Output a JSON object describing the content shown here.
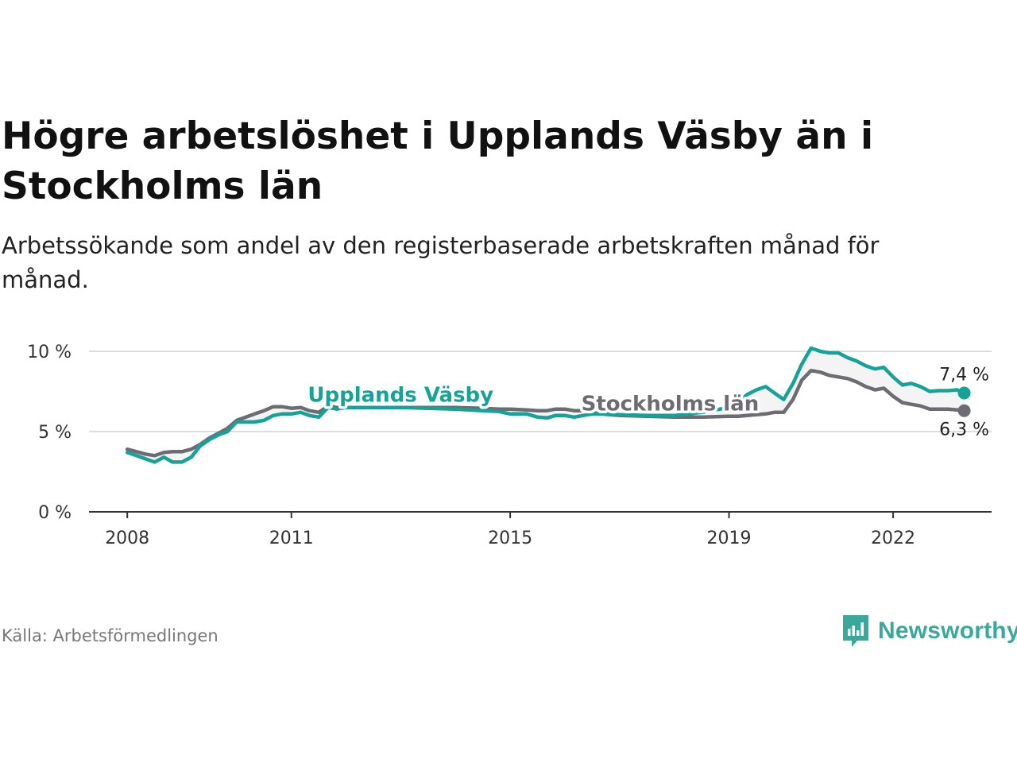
{
  "title": "Högre arbetslöshet i Upplands Väsby än i Stockholms län",
  "subtitle": "Arbetssökande som andel av den registerbaserade arbetskraften månad för månad.",
  "source": "Källa: Arbetsförmedlingen",
  "brand": {
    "name": "Newsworthy",
    "icon": "newsworthy-logo-icon"
  },
  "colors": {
    "upplands": "#14a396",
    "stockholm": "#6e6c73",
    "grid": "#dddddd",
    "axis": "#333333",
    "band": "#f4f4f4"
  },
  "chart_data": {
    "type": "line",
    "title": "Högre arbetslöshet i Upplands Väsby än i Stockholms län",
    "xlabel": "",
    "ylabel": "",
    "xlim": [
      2007.3,
      2023.8
    ],
    "ylim": [
      0,
      10
    ],
    "yticks": [
      0,
      5,
      10
    ],
    "ytick_labels": [
      "0 %",
      "5 %",
      "10 %"
    ],
    "xticks": [
      2008,
      2011,
      2015,
      2019,
      2022
    ],
    "xtick_labels": [
      "2008",
      "2011",
      "2015",
      "2019",
      "2022"
    ],
    "grid": true,
    "series": [
      {
        "name": "Upplands Väsby",
        "label_x": 2011.3,
        "label_y": 6.85,
        "end_label": "7,4 %",
        "points": [
          [
            2008.0,
            3.7
          ],
          [
            2008.17,
            3.5
          ],
          [
            2008.33,
            3.3
          ],
          [
            2008.5,
            3.1
          ],
          [
            2008.67,
            3.4
          ],
          [
            2008.83,
            3.1
          ],
          [
            2009.0,
            3.1
          ],
          [
            2009.17,
            3.4
          ],
          [
            2009.33,
            4.1
          ],
          [
            2009.5,
            4.5
          ],
          [
            2009.67,
            4.8
          ],
          [
            2009.83,
            5.0
          ],
          [
            2010.0,
            5.6
          ],
          [
            2010.17,
            5.6
          ],
          [
            2010.33,
            5.6
          ],
          [
            2010.5,
            5.7
          ],
          [
            2010.67,
            6.0
          ],
          [
            2010.83,
            6.1
          ],
          [
            2011.0,
            6.1
          ],
          [
            2011.17,
            6.2
          ],
          [
            2011.33,
            6.0
          ],
          [
            2011.5,
            5.9
          ],
          [
            2011.67,
            6.5
          ],
          [
            2011.83,
            6.4
          ],
          [
            2012.0,
            6.5
          ],
          [
            2012.5,
            6.5
          ],
          [
            2013.0,
            6.5
          ],
          [
            2013.5,
            6.45
          ],
          [
            2014.0,
            6.4
          ],
          [
            2014.5,
            6.3
          ],
          [
            2014.8,
            6.25
          ],
          [
            2015.0,
            6.1
          ],
          [
            2015.3,
            6.1
          ],
          [
            2015.5,
            5.9
          ],
          [
            2015.67,
            5.85
          ],
          [
            2015.83,
            6.0
          ],
          [
            2016.0,
            6.0
          ],
          [
            2016.17,
            5.9
          ],
          [
            2016.33,
            6.0
          ],
          [
            2016.5,
            6.1
          ],
          [
            2016.67,
            6.1
          ],
          [
            2016.83,
            6.1
          ],
          [
            2017.0,
            6.05
          ],
          [
            2017.5,
            6.0
          ],
          [
            2018.0,
            6.0
          ],
          [
            2018.5,
            6.2
          ],
          [
            2019.0,
            6.5
          ],
          [
            2019.17,
            6.8
          ],
          [
            2019.33,
            7.3
          ],
          [
            2019.5,
            7.6
          ],
          [
            2019.67,
            7.8
          ],
          [
            2019.83,
            7.4
          ],
          [
            2020.0,
            7.0
          ],
          [
            2020.17,
            8.0
          ],
          [
            2020.33,
            9.2
          ],
          [
            2020.5,
            10.2
          ],
          [
            2020.67,
            10.0
          ],
          [
            2020.83,
            9.9
          ],
          [
            2021.0,
            9.9
          ],
          [
            2021.17,
            9.6
          ],
          [
            2021.33,
            9.4
          ],
          [
            2021.5,
            9.1
          ],
          [
            2021.67,
            8.9
          ],
          [
            2021.83,
            9.0
          ],
          [
            2022.0,
            8.4
          ],
          [
            2022.17,
            7.9
          ],
          [
            2022.33,
            8.0
          ],
          [
            2022.5,
            7.8
          ],
          [
            2022.67,
            7.5
          ],
          [
            2022.83,
            7.55
          ],
          [
            2023.0,
            7.55
          ],
          [
            2023.17,
            7.6
          ],
          [
            2023.3,
            7.4
          ]
        ]
      },
      {
        "name": "Stockholms län",
        "label_x": 2016.3,
        "label_y": 6.3,
        "end_label": "6,3 %",
        "points": [
          [
            2008.0,
            3.9
          ],
          [
            2008.17,
            3.75
          ],
          [
            2008.33,
            3.6
          ],
          [
            2008.5,
            3.5
          ],
          [
            2008.67,
            3.7
          ],
          [
            2008.83,
            3.75
          ],
          [
            2009.0,
            3.75
          ],
          [
            2009.17,
            3.9
          ],
          [
            2009.33,
            4.2
          ],
          [
            2009.5,
            4.6
          ],
          [
            2009.67,
            4.9
          ],
          [
            2009.83,
            5.2
          ],
          [
            2010.0,
            5.7
          ],
          [
            2010.17,
            5.9
          ],
          [
            2010.33,
            6.1
          ],
          [
            2010.5,
            6.3
          ],
          [
            2010.67,
            6.55
          ],
          [
            2010.83,
            6.55
          ],
          [
            2011.0,
            6.45
          ],
          [
            2011.17,
            6.5
          ],
          [
            2011.33,
            6.3
          ],
          [
            2011.5,
            6.2
          ],
          [
            2011.67,
            6.6
          ],
          [
            2011.83,
            6.5
          ],
          [
            2012.0,
            6.5
          ],
          [
            2012.5,
            6.5
          ],
          [
            2013.0,
            6.5
          ],
          [
            2013.5,
            6.5
          ],
          [
            2014.0,
            6.5
          ],
          [
            2014.5,
            6.45
          ],
          [
            2014.8,
            6.4
          ],
          [
            2015.0,
            6.4
          ],
          [
            2015.3,
            6.35
          ],
          [
            2015.5,
            6.3
          ],
          [
            2015.67,
            6.3
          ],
          [
            2015.83,
            6.4
          ],
          [
            2016.0,
            6.4
          ],
          [
            2016.17,
            6.3
          ],
          [
            2016.33,
            6.3
          ],
          [
            2016.5,
            6.2
          ],
          [
            2016.67,
            6.1
          ],
          [
            2016.83,
            6.05
          ],
          [
            2017.0,
            6.0
          ],
          [
            2017.5,
            5.95
          ],
          [
            2018.0,
            5.9
          ],
          [
            2018.5,
            5.9
          ],
          [
            2019.0,
            5.95
          ],
          [
            2019.17,
            5.95
          ],
          [
            2019.33,
            6.0
          ],
          [
            2019.5,
            6.05
          ],
          [
            2019.67,
            6.1
          ],
          [
            2019.83,
            6.2
          ],
          [
            2020.0,
            6.2
          ],
          [
            2020.17,
            7.0
          ],
          [
            2020.33,
            8.2
          ],
          [
            2020.5,
            8.8
          ],
          [
            2020.67,
            8.7
          ],
          [
            2020.83,
            8.5
          ],
          [
            2021.0,
            8.4
          ],
          [
            2021.17,
            8.3
          ],
          [
            2021.33,
            8.1
          ],
          [
            2021.5,
            7.8
          ],
          [
            2021.67,
            7.6
          ],
          [
            2021.83,
            7.7
          ],
          [
            2022.0,
            7.2
          ],
          [
            2022.17,
            6.8
          ],
          [
            2022.33,
            6.7
          ],
          [
            2022.5,
            6.6
          ],
          [
            2022.67,
            6.4
          ],
          [
            2022.83,
            6.4
          ],
          [
            2023.0,
            6.4
          ],
          [
            2023.17,
            6.35
          ],
          [
            2023.3,
            6.3
          ]
        ]
      }
    ]
  }
}
